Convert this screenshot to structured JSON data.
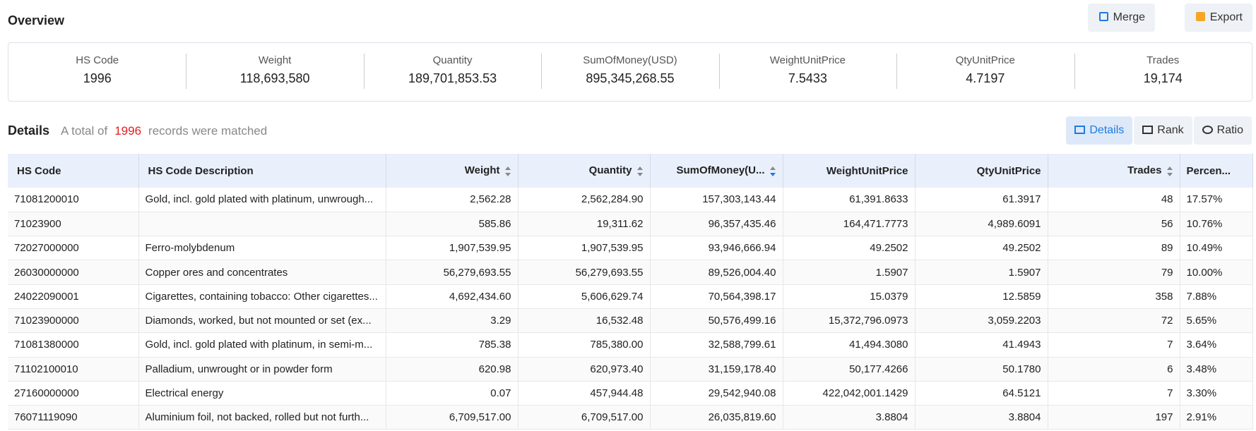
{
  "header": {
    "title": "Overview",
    "buttons": [
      "Merge",
      "Export"
    ]
  },
  "summary": [
    {
      "label": "HS Code",
      "value": "1996"
    },
    {
      "label": "Weight",
      "value": "118,693,580"
    },
    {
      "label": "Quantity",
      "value": "189,701,853.53"
    },
    {
      "label": "SumOfMoney(USD)",
      "value": "895,345,268.55"
    },
    {
      "label": "WeightUnitPrice",
      "value": "7.5433"
    },
    {
      "label": "QtyUnitPrice",
      "value": "4.7197"
    },
    {
      "label": "Trades",
      "value": "19,174"
    }
  ],
  "details": {
    "title": "Details",
    "prefix": "A total of",
    "count": "1996",
    "suffix": "records were matched",
    "tabs": [
      "Details",
      "Rank",
      "Ratio"
    ]
  },
  "table": {
    "columns": [
      "HS Code",
      "HS Code Description",
      "Weight",
      "Quantity",
      "SumOfMoney(U...",
      "WeightUnitPrice",
      "QtyUnitPrice",
      "Trades",
      "Percen..."
    ],
    "rows": [
      [
        "71081200010",
        "Gold, incl. gold plated with platinum, unwrough...",
        "2,562.28",
        "2,562,284.90",
        "157,303,143.44",
        "61,391.8633",
        "61.3917",
        "48",
        "17.57%"
      ],
      [
        "71023900",
        "",
        "585.86",
        "19,311.62",
        "96,357,435.46",
        "164,471.7773",
        "4,989.6091",
        "56",
        "10.76%"
      ],
      [
        "72027000000",
        "Ferro-molybdenum",
        "1,907,539.95",
        "1,907,539.95",
        "93,946,666.94",
        "49.2502",
        "49.2502",
        "89",
        "10.49%"
      ],
      [
        "26030000000",
        "Copper ores and concentrates",
        "56,279,693.55",
        "56,279,693.55",
        "89,526,004.40",
        "1.5907",
        "1.5907",
        "79",
        "10.00%"
      ],
      [
        "24022090001",
        "Cigarettes, containing tobacco: Other cigarettes...",
        "4,692,434.60",
        "5,606,629.74",
        "70,564,398.17",
        "15.0379",
        "12.5859",
        "358",
        "7.88%"
      ],
      [
        "71023900000",
        "Diamonds, worked, but not mounted or set (ex...",
        "3.29",
        "16,532.48",
        "50,576,499.16",
        "15,372,796.0973",
        "3,059.2203",
        "72",
        "5.65%"
      ],
      [
        "71081380000",
        "Gold, incl. gold plated with platinum, in semi-m...",
        "785.38",
        "785,380.00",
        "32,588,799.61",
        "41,494.3080",
        "41.4943",
        "7",
        "3.64%"
      ],
      [
        "71102100010",
        "Palladium, unwrought or in powder form",
        "620.98",
        "620,973.40",
        "31,159,178.40",
        "50,177.4266",
        "50.1780",
        "6",
        "3.48%"
      ],
      [
        "27160000000",
        "Electrical energy",
        "0.07",
        "457,944.48",
        "29,542,940.08",
        "422,042,001.1429",
        "64.5121",
        "7",
        "3.30%"
      ],
      [
        "76071119090",
        "Aluminium foil, not backed, rolled but not furth...",
        "6,709,517.00",
        "6,709,517.00",
        "26,035,819.60",
        "3.8804",
        "3.8804",
        "197",
        "2.91%"
      ]
    ]
  }
}
